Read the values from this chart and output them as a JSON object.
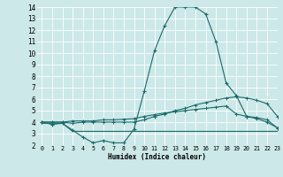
{
  "xlabel": "Humidex (Indice chaleur)",
  "xlim": [
    -0.5,
    23
  ],
  "ylim": [
    2,
    14
  ],
  "yticks": [
    2,
    3,
    4,
    5,
    6,
    7,
    8,
    9,
    10,
    11,
    12,
    13,
    14
  ],
  "xticks": [
    0,
    1,
    2,
    3,
    4,
    5,
    6,
    7,
    8,
    9,
    10,
    11,
    12,
    13,
    14,
    15,
    16,
    17,
    18,
    19,
    20,
    21,
    22,
    23
  ],
  "background_color": "#cce8e8",
  "line_color": "#1a6b6b",
  "grid_color": "#ffffff",
  "line1_y": [
    4.0,
    3.8,
    3.9,
    3.3,
    2.7,
    2.2,
    2.4,
    2.2,
    2.2,
    3.4,
    6.7,
    10.2,
    12.4,
    14.0,
    14.0,
    14.0,
    13.4,
    11.0,
    7.4,
    6.3,
    4.5,
    4.3,
    4.0,
    3.5
  ],
  "line2_y": [
    4.0,
    4.0,
    4.0,
    3.9,
    4.0,
    4.0,
    4.0,
    4.0,
    4.0,
    4.0,
    4.2,
    4.5,
    4.7,
    5.0,
    5.2,
    5.5,
    5.7,
    5.9,
    6.1,
    6.2,
    6.1,
    5.9,
    5.6,
    4.5
  ],
  "line3_y": [
    3.9,
    3.9,
    3.9,
    3.2,
    3.2,
    3.2,
    3.2,
    3.2,
    3.2,
    3.2,
    3.2,
    3.2,
    3.2,
    3.2,
    3.2,
    3.2,
    3.2,
    3.2,
    3.2,
    3.2,
    3.2,
    3.2,
    3.2,
    3.2
  ],
  "line4_y": [
    4.0,
    4.0,
    4.0,
    4.1,
    4.1,
    4.1,
    4.2,
    4.2,
    4.25,
    4.3,
    4.5,
    4.65,
    4.8,
    4.9,
    5.0,
    5.1,
    5.2,
    5.3,
    5.4,
    4.7,
    4.5,
    4.4,
    4.2,
    3.5
  ]
}
